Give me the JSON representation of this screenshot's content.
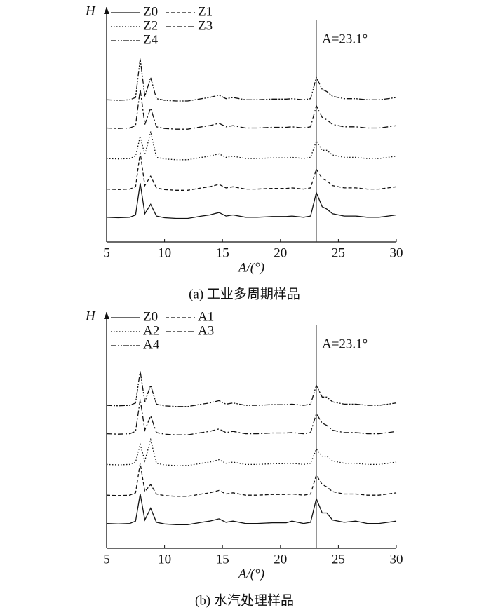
{
  "chart_data": [
    {
      "type": "line",
      "caption": "(a) 工业多周期样品",
      "x_label": "A/(°)",
      "y_label": "H",
      "xlim": [
        5,
        30
      ],
      "xticks": [
        5,
        10,
        15,
        20,
        25,
        30
      ],
      "ylim": [
        0,
        100
      ],
      "color": "#111111",
      "annotation": {
        "text": "A=23.1°",
        "x": 23.1
      },
      "x": [
        5,
        6,
        7,
        7.5,
        7.9,
        8.3,
        8.8,
        9.3,
        10,
        11,
        12,
        13.2,
        13.9,
        14.7,
        15.3,
        15.9,
        17,
        18,
        19.3,
        20.5,
        21,
        22,
        22.6,
        23.1,
        23.6,
        24,
        24.5,
        25.5,
        26.5,
        27.5,
        28.5,
        29.3,
        30
      ],
      "series": [
        {
          "name": "Z0",
          "line_style": "solid",
          "values": [
            10.5,
            10.3,
            10.5,
            11.5,
            25,
            12,
            16,
            11,
            10.3,
            10,
            10,
            11,
            11.5,
            12.5,
            11,
            11.5,
            10.5,
            10.5,
            10.8,
            10.8,
            11,
            10.5,
            11,
            21,
            15,
            14,
            12,
            11,
            11,
            10.5,
            10.5,
            11,
            11.5
          ]
        },
        {
          "name": "Z1",
          "line_style": "dashed",
          "values": [
            22.5,
            22.3,
            22.5,
            23.5,
            38,
            24,
            28,
            23,
            22.3,
            22,
            22,
            23,
            23.5,
            24.5,
            23,
            23.5,
            22.5,
            22.5,
            22.8,
            22.8,
            23,
            22.5,
            23,
            31,
            27,
            26,
            24,
            23,
            23,
            22.5,
            22.5,
            23,
            23.5
          ]
        },
        {
          "name": "Z2",
          "line_style": "dotted",
          "values": [
            35.5,
            35.3,
            35.5,
            36.5,
            45,
            37,
            47,
            36,
            35.3,
            35,
            35,
            36,
            36.5,
            37.5,
            36,
            36.5,
            35.5,
            35.5,
            35.8,
            35.8,
            36,
            35.5,
            36,
            43,
            39,
            39,
            37,
            36,
            36,
            35.5,
            35.5,
            36,
            36.5
          ]
        },
        {
          "name": "Z3",
          "line_style": "dashdot",
          "values": [
            48.5,
            48.3,
            48.5,
            49.5,
            65,
            50,
            57,
            49,
            48.3,
            48,
            48,
            49,
            49.5,
            50.5,
            49,
            49.5,
            48.5,
            48.5,
            48.8,
            48.8,
            49,
            48.5,
            49,
            58,
            53,
            52,
            50,
            49,
            49,
            48.5,
            48.5,
            49,
            49.5
          ]
        },
        {
          "name": "Z4",
          "line_style": "dashdotdot",
          "values": [
            60.5,
            60.3,
            60.5,
            61.5,
            78,
            62,
            70,
            61,
            60.3,
            60,
            60,
            61,
            61.5,
            62.5,
            61,
            61.5,
            60.5,
            60.5,
            60.8,
            60.8,
            61,
            60.5,
            61,
            70,
            65,
            64,
            62,
            61,
            61,
            60.5,
            60.5,
            61,
            61.5
          ]
        }
      ]
    },
    {
      "type": "line",
      "caption": "(b) 水汽处理样品",
      "x_label": "A/(°)",
      "y_label": "H",
      "xlim": [
        5,
        30
      ],
      "xticks": [
        5,
        10,
        15,
        20,
        25,
        30
      ],
      "ylim": [
        0,
        100
      ],
      "color": "#111111",
      "annotation": {
        "text": "A=23.1°",
        "x": 23.1
      },
      "x": [
        5,
        6,
        7,
        7.5,
        7.9,
        8.3,
        8.8,
        9.3,
        10,
        11,
        12,
        13.2,
        13.9,
        14.7,
        15.3,
        15.9,
        17,
        18,
        19.3,
        20.5,
        21,
        22,
        22.6,
        23.1,
        23.6,
        24,
        24.5,
        25.5,
        26.5,
        27.5,
        28.5,
        29.3,
        30
      ],
      "series": [
        {
          "name": "Z0",
          "line_style": "solid",
          "values": [
            10.5,
            10.3,
            10.5,
            11.5,
            23,
            12,
            17,
            11,
            10.3,
            10,
            10,
            11,
            11.5,
            12.5,
            11,
            11.5,
            10.5,
            10.5,
            10.8,
            10.8,
            11.5,
            10.5,
            11,
            21,
            15,
            15,
            12,
            11,
            11.5,
            10.5,
            10.5,
            11,
            11.5
          ]
        },
        {
          "name": "A1",
          "line_style": "dashed",
          "values": [
            22.5,
            22.3,
            22.5,
            23.5,
            36,
            24,
            27,
            23,
            22.3,
            22,
            22,
            23,
            23.5,
            24.5,
            23,
            23.5,
            22.5,
            22.5,
            22.8,
            22.8,
            23,
            22.5,
            23,
            31,
            27,
            26,
            24,
            23,
            23,
            22.5,
            22.5,
            23,
            23.5
          ]
        },
        {
          "name": "A2",
          "line_style": "dotted",
          "values": [
            35.5,
            35.3,
            35.5,
            36.5,
            44,
            37,
            46,
            36,
            35.3,
            35,
            35,
            36,
            36.5,
            37.5,
            36,
            36.5,
            35.5,
            35.5,
            35.8,
            35.8,
            36,
            35.5,
            36,
            42,
            39,
            39,
            37,
            36,
            36,
            35.5,
            35.5,
            36,
            36.5
          ]
        },
        {
          "name": "A3",
          "line_style": "dashdot",
          "values": [
            48.5,
            48.3,
            48.5,
            49.5,
            63,
            50,
            56,
            49,
            48.3,
            48,
            48,
            49,
            49.5,
            50.5,
            49,
            49.5,
            48.5,
            48.5,
            48.8,
            48.8,
            49,
            48.5,
            49,
            57,
            53,
            52,
            50,
            49,
            49,
            48.5,
            48.5,
            49,
            49.5
          ]
        },
        {
          "name": "A4",
          "line_style": "dashdotdot",
          "values": [
            60.5,
            60.3,
            60.5,
            61.5,
            75,
            62,
            69,
            61,
            60.3,
            60,
            60,
            61,
            61.5,
            62.5,
            61,
            61.5,
            60.5,
            60.5,
            60.8,
            60.8,
            61,
            60.5,
            61,
            69,
            64,
            64,
            62,
            61,
            61,
            60.5,
            60.5,
            61,
            61.5
          ]
        }
      ]
    }
  ]
}
